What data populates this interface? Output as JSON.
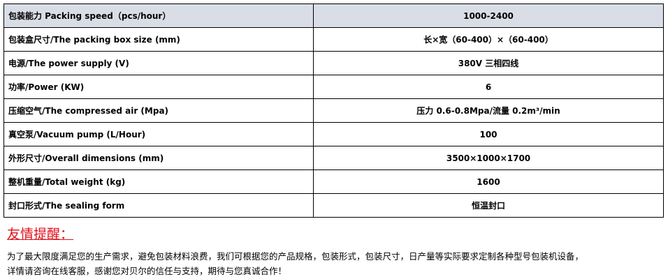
{
  "specs": [
    {
      "label": "包装能力 Packing speed（pcs/hour）",
      "value": "1000-2400"
    },
    {
      "label": "包装盒尺寸/The packing box size (mm)",
      "value": "长×宽（60-400）×（60-400）"
    },
    {
      "label": "电源/The power supply (V)",
      "value": "380V 三相四线"
    },
    {
      "label": "功率/Power (KW)",
      "value": "6"
    },
    {
      "label": "压缩空气/The compressed air (Mpa)",
      "value": "压力 0.6-0.8Mpa/流量 0.2m³/min"
    },
    {
      "label": "真空泵/Vacuum pump (L/Hour)",
      "value": "100"
    },
    {
      "label": "外形尺寸/Overall dimensions (mm)",
      "value": "3500×1000×1700"
    },
    {
      "label": "整机重量/Total weight (kg)",
      "value": "1600"
    },
    {
      "label": "封口形式/The sealing form",
      "value": "恒温封口"
    }
  ],
  "notice": {
    "title": "友情提醒：",
    "line1": "为了最大限度满足您的生产需求，避免包装材料浪费，我们可根据您的产品规格，包装形式，包装尺寸，日产量等实际要求定制各种型号包装机设备，",
    "line2": "详情请咨询在线客服，感谢您对贝尔的信任与支持，期待与您真诚合作！"
  },
  "colors": {
    "header_bg": "#d9dde6",
    "notice_title": "#e0101a"
  }
}
